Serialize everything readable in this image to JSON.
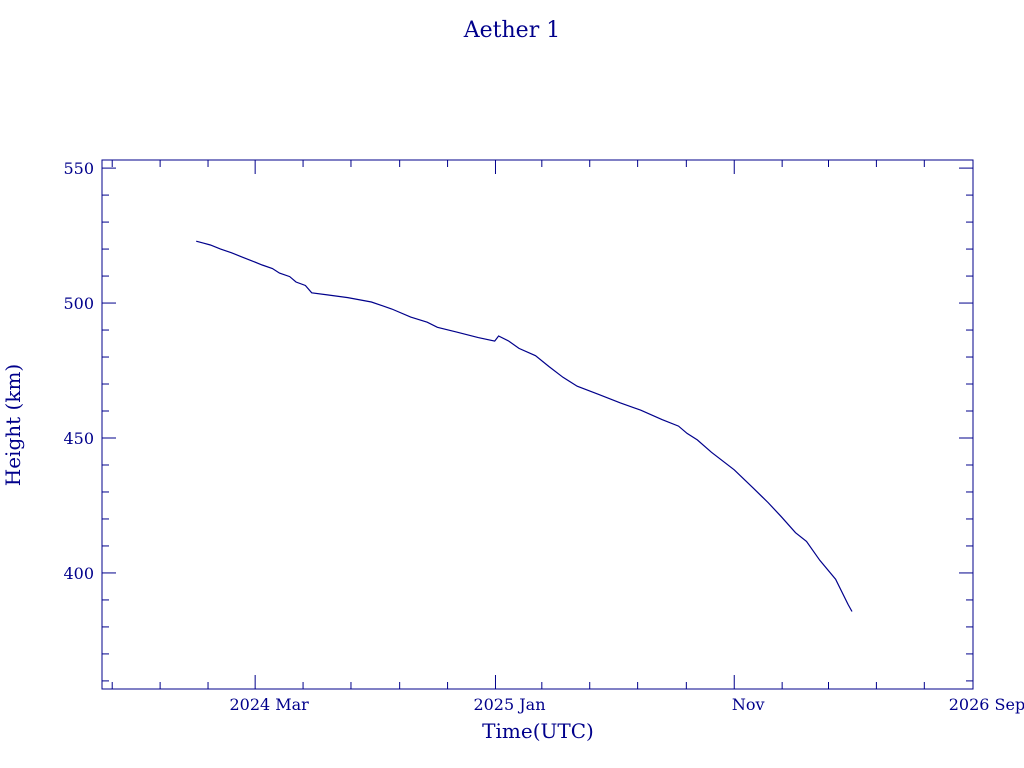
{
  "colors": {
    "ink": "#00008b",
    "background": "#ffffff"
  },
  "chart_data": {
    "type": "line",
    "title": "Aether 1",
    "xlabel": "Time(UTC)",
    "ylabel": "Height (km)",
    "grid": false,
    "legend": "none",
    "xlim": [
      "2023-08-19",
      "2026-09-01"
    ],
    "ylim": [
      357,
      553
    ],
    "x_ticks": [
      {
        "date": "2024-03-01",
        "label": "2024 Mar"
      },
      {
        "date": "2025-01-01",
        "label": "2025 Jan"
      },
      {
        "date": "2025-11-01",
        "label": "Nov"
      },
      {
        "date": "2026-09-01",
        "label": "2026 Sep"
      }
    ],
    "y_ticks": [
      400,
      450,
      500,
      550
    ],
    "series": [
      {
        "points": [
          [
            "2023-12-17",
            522.9
          ],
          [
            "2023-12-26",
            522.2
          ],
          [
            "2024-01-04",
            521.5
          ],
          [
            "2024-01-17",
            520.0
          ],
          [
            "2024-01-31",
            518.6
          ],
          [
            "2024-02-13",
            517.1
          ],
          [
            "2024-02-26",
            515.6
          ],
          [
            "2024-03-10",
            514.1
          ],
          [
            "2024-03-23",
            512.8
          ],
          [
            "2024-04-01",
            511.1
          ],
          [
            "2024-04-14",
            509.8
          ],
          [
            "2024-04-22",
            507.8
          ],
          [
            "2024-05-04",
            506.5
          ],
          [
            "2024-05-12",
            503.8
          ],
          [
            "2024-06-01",
            503.0
          ],
          [
            "2024-06-27",
            502.0
          ],
          [
            "2024-07-27",
            500.4
          ],
          [
            "2024-08-22",
            497.8
          ],
          [
            "2024-09-15",
            494.8
          ],
          [
            "2024-10-06",
            492.9
          ],
          [
            "2024-10-19",
            491.0
          ],
          [
            "2024-11-12",
            489.3
          ],
          [
            "2024-12-10",
            487.2
          ],
          [
            "2024-12-31",
            485.9
          ],
          [
            "2025-01-05",
            487.8
          ],
          [
            "2025-01-18",
            485.9
          ],
          [
            "2025-01-31",
            483.2
          ],
          [
            "2025-02-21",
            480.5
          ],
          [
            "2025-03-10",
            476.5
          ],
          [
            "2025-03-28",
            472.5
          ],
          [
            "2025-04-15",
            469.2
          ],
          [
            "2025-05-12",
            466.2
          ],
          [
            "2025-06-09",
            463.0
          ],
          [
            "2025-07-05",
            460.3
          ],
          [
            "2025-08-01",
            456.8
          ],
          [
            "2025-08-22",
            454.4
          ],
          [
            "2025-09-02",
            451.7
          ],
          [
            "2025-09-15",
            449.3
          ],
          [
            "2025-10-03",
            444.7
          ],
          [
            "2025-11-01",
            438.2
          ],
          [
            "2025-11-25",
            431.5
          ],
          [
            "2025-12-14",
            426.1
          ],
          [
            "2025-12-31",
            420.8
          ],
          [
            "2026-01-18",
            414.9
          ],
          [
            "2026-02-01",
            411.7
          ],
          [
            "2026-02-18",
            404.7
          ],
          [
            "2026-03-10",
            397.7
          ],
          [
            "2026-03-26",
            388.3
          ],
          [
            "2026-03-31",
            385.7
          ]
        ]
      }
    ]
  }
}
